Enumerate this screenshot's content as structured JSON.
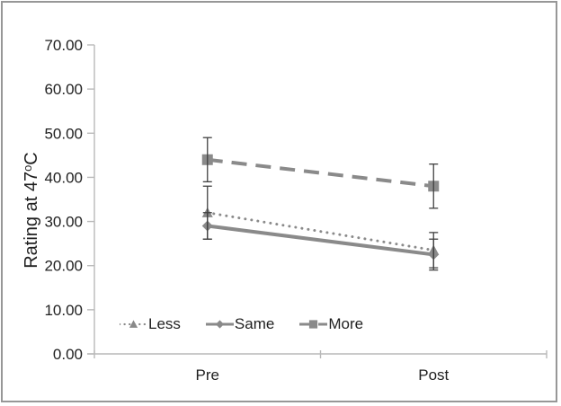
{
  "chart_data": {
    "type": "line",
    "title": "",
    "xlabel": "",
    "ylabel": "Rating at 47°C",
    "ylabel_parts": {
      "text": "Rating at 47",
      "superscript": "o",
      "suffix": "C"
    },
    "categories": [
      "Pre",
      "Post"
    ],
    "series": [
      {
        "name": "Less",
        "values": [
          32,
          23.5
        ],
        "error": [
          6,
          4
        ],
        "line_style": "dotted",
        "marker": "triangle"
      },
      {
        "name": "Same",
        "values": [
          29,
          22.5
        ],
        "error": [
          3,
          3.5
        ],
        "line_style": "solid",
        "marker": "diamond"
      },
      {
        "name": "More",
        "values": [
          44,
          38
        ],
        "error": [
          5,
          5
        ],
        "line_style": "dashed",
        "marker": "square"
      }
    ],
    "ylim": [
      0,
      70
    ],
    "ytick_step": 10,
    "ytick_labels": [
      "0.00",
      "10.00",
      "20.00",
      "30.00",
      "40.00",
      "50.00",
      "60.00",
      "70.00"
    ],
    "grid": false,
    "legend_position": "inside-bottom-left",
    "colors": {
      "series_gray": "#8a8a8a",
      "error_bar": "#404040",
      "axis_line": "#b9b9b9",
      "text": "#1f1f1f",
      "frame_border": "#979797"
    }
  }
}
